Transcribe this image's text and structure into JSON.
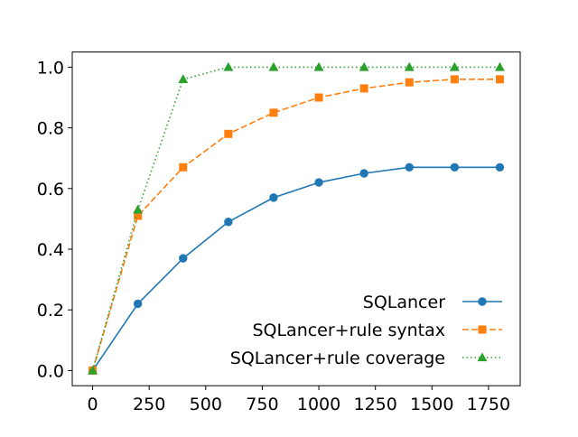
{
  "chart_data": {
    "type": "line",
    "title": "",
    "xlabel": "",
    "ylabel": "",
    "x": [
      0,
      200,
      400,
      600,
      800,
      1000,
      1200,
      1400,
      1600,
      1800
    ],
    "xlim": [
      -90,
      1890
    ],
    "ylim": [
      -0.05,
      1.05
    ],
    "xticks": [
      0,
      250,
      500,
      750,
      1000,
      1250,
      1500,
      1750
    ],
    "xtick_labels": [
      "0",
      "250",
      "500",
      "750",
      "1000",
      "1250",
      "1500",
      "1750"
    ],
    "yticks": [
      0.0,
      0.2,
      0.4,
      0.6,
      0.8,
      1.0
    ],
    "ytick_labels": [
      "0.0",
      "0.2",
      "0.4",
      "0.6",
      "0.8",
      "1.0"
    ],
    "grid": false,
    "legend_position": "lower-right",
    "series": [
      {
        "name": "SQLancer",
        "color": "#1f77b4",
        "line_style": "solid",
        "marker": "circle",
        "values": [
          0.0,
          0.22,
          0.37,
          0.49,
          0.57,
          0.62,
          0.65,
          0.67,
          0.67,
          0.67
        ]
      },
      {
        "name": "SQLancer+rule syntax",
        "color": "#ff7f0e",
        "line_style": "dashed",
        "marker": "square",
        "values": [
          0.0,
          0.51,
          0.67,
          0.78,
          0.85,
          0.9,
          0.93,
          0.95,
          0.96,
          0.96
        ]
      },
      {
        "name": "SQLancer+rule coverage",
        "color": "#2ca02c",
        "line_style": "dotted",
        "marker": "triangle",
        "values": [
          0.0,
          0.53,
          0.96,
          1.0,
          1.0,
          1.0,
          1.0,
          1.0,
          1.0,
          1.0
        ]
      }
    ]
  }
}
